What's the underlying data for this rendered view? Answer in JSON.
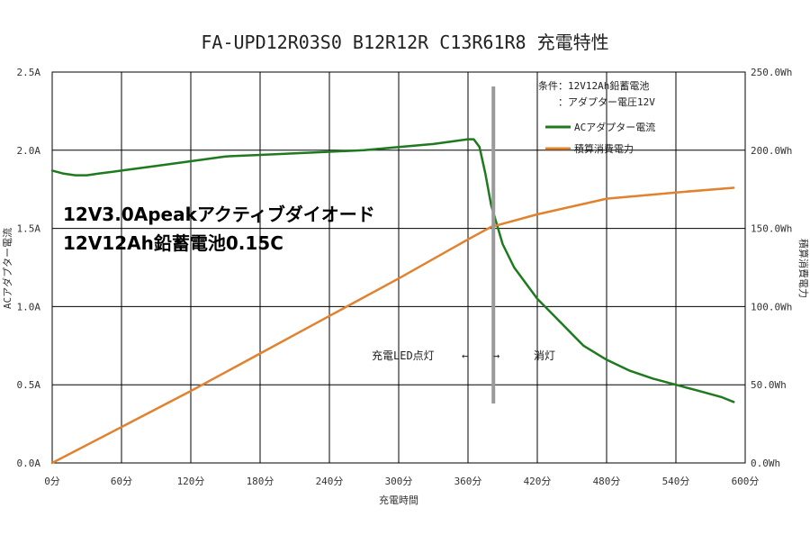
{
  "chart_data": {
    "type": "line",
    "title": "FA-UPD12R03S0 B12R12R C13R61R8 充電特性",
    "xlabel": "充電時間",
    "ylabel_left": "ACアダプター電流",
    "ylabel_right": "積算消費電力",
    "xlim": [
      0,
      600
    ],
    "ylim_left": [
      0,
      2.5
    ],
    "ylim_right": [
      0,
      250
    ],
    "x_ticks": [
      "0分",
      "60分",
      "120分",
      "180分",
      "240分",
      "300分",
      "360分",
      "420分",
      "480分",
      "540分",
      "600分"
    ],
    "y_left_ticks": [
      "0.0A",
      "0.5A",
      "1.0A",
      "1.5A",
      "2.0A",
      "2.5A"
    ],
    "y_right_ticks": [
      "0.0Wh",
      "50.0Wh",
      "100.0Wh",
      "150.0Wh",
      "200.0Wh",
      "250.0Wh"
    ],
    "grid": true,
    "legend_placement": "top-right",
    "legend_conditions": [
      "条件：12V12Ah鉛蓄電池",
      "　　：アダプター電圧12V"
    ],
    "series": [
      {
        "name": "ACアダプター電流",
        "axis": "left",
        "color": "#1f7a1f",
        "x": [
          0,
          10,
          20,
          30,
          40,
          60,
          90,
          120,
          150,
          180,
          210,
          240,
          270,
          300,
          330,
          350,
          360,
          365,
          370,
          375,
          380,
          390,
          400,
          420,
          440,
          460,
          480,
          500,
          520,
          540,
          560,
          580,
          590
        ],
        "y": [
          1.87,
          1.85,
          1.84,
          1.84,
          1.85,
          1.87,
          1.9,
          1.93,
          1.96,
          1.97,
          1.98,
          1.99,
          2.0,
          2.02,
          2.04,
          2.06,
          2.07,
          2.07,
          2.02,
          1.85,
          1.65,
          1.4,
          1.25,
          1.05,
          0.9,
          0.75,
          0.66,
          0.59,
          0.54,
          0.5,
          0.46,
          0.42,
          0.39
        ]
      },
      {
        "name": "積算消費電力",
        "axis": "right",
        "color": "#e0822e",
        "x": [
          0,
          60,
          120,
          180,
          240,
          300,
          360,
          380,
          420,
          480,
          540,
          590
        ],
        "y": [
          0,
          23,
          46,
          70,
          94,
          118,
          143,
          151,
          159,
          169,
          173,
          176
        ]
      }
    ],
    "led_marker_x": 382,
    "annotations": {
      "headline1": "12V3.0Apeakアクティブダイオード",
      "headline2": "12V12Ah鉛蓄電池0.15C",
      "led_on": "充電LED点灯",
      "arrow_left": "←",
      "arrow_right": "→",
      "led_off": "消灯"
    }
  }
}
